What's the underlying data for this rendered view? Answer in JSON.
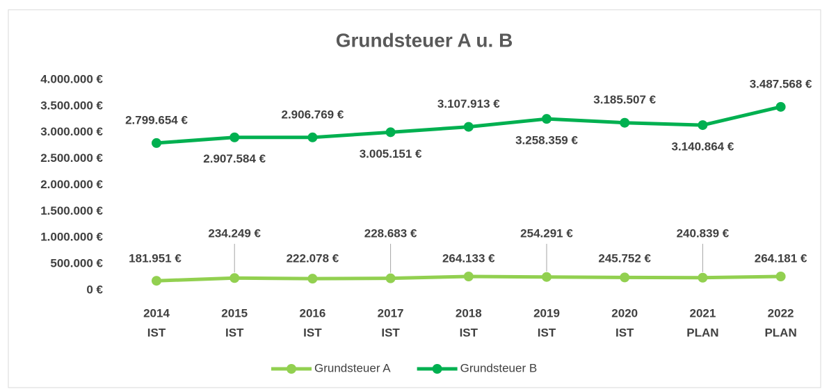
{
  "chart_data": {
    "type": "line",
    "title": "Grundsteuer A u. B",
    "categories": [
      "2014",
      "2015",
      "2016",
      "2017",
      "2018",
      "2019",
      "2020",
      "2021",
      "2022"
    ],
    "category_sublabels": [
      "IST",
      "IST",
      "IST",
      "IST",
      "IST",
      "IST",
      "IST",
      "PLAN",
      "PLAN"
    ],
    "series": [
      {
        "name": "Grundsteuer A",
        "color": "#92d050",
        "values": [
          181951,
          234249,
          222078,
          228683,
          264133,
          254291,
          245752,
          240839,
          264181
        ],
        "value_labels": [
          "181.951 €",
          "234.249 €",
          "222.078 €",
          "228.683 €",
          "264.133 €",
          "254.291 €",
          "245.752 €",
          "240.839 €",
          "264.181 €"
        ]
      },
      {
        "name": "Grundsteuer B",
        "color": "#00b050",
        "values": [
          2799654,
          2907584,
          2906769,
          3005151,
          3107913,
          3258359,
          3185507,
          3140864,
          3487568
        ],
        "value_labels": [
          "2.799.654 €",
          "2.907.584 €",
          "2.906.769 €",
          "3.005.151 €",
          "3.107.913 €",
          "3.258.359 €",
          "3.185.507 €",
          "3.140.864 €",
          "3.487.568 €"
        ]
      }
    ],
    "ylim": [
      0,
      4000000
    ],
    "yticks": [
      {
        "value": 0,
        "label": "0 €"
      },
      {
        "value": 500000,
        "label": "500.000 €"
      },
      {
        "value": 1000000,
        "label": "1.000.000 €"
      },
      {
        "value": 1500000,
        "label": "1.500.000 €"
      },
      {
        "value": 2000000,
        "label": "2.000.000 €"
      },
      {
        "value": 2500000,
        "label": "2.500.000 €"
      },
      {
        "value": 3000000,
        "label": "3.000.000 €"
      },
      {
        "value": 3500000,
        "label": "3.500.000 €"
      },
      {
        "value": 4000000,
        "label": "4.000.000 €"
      }
    ],
    "grid": false,
    "legend": "bottom"
  }
}
